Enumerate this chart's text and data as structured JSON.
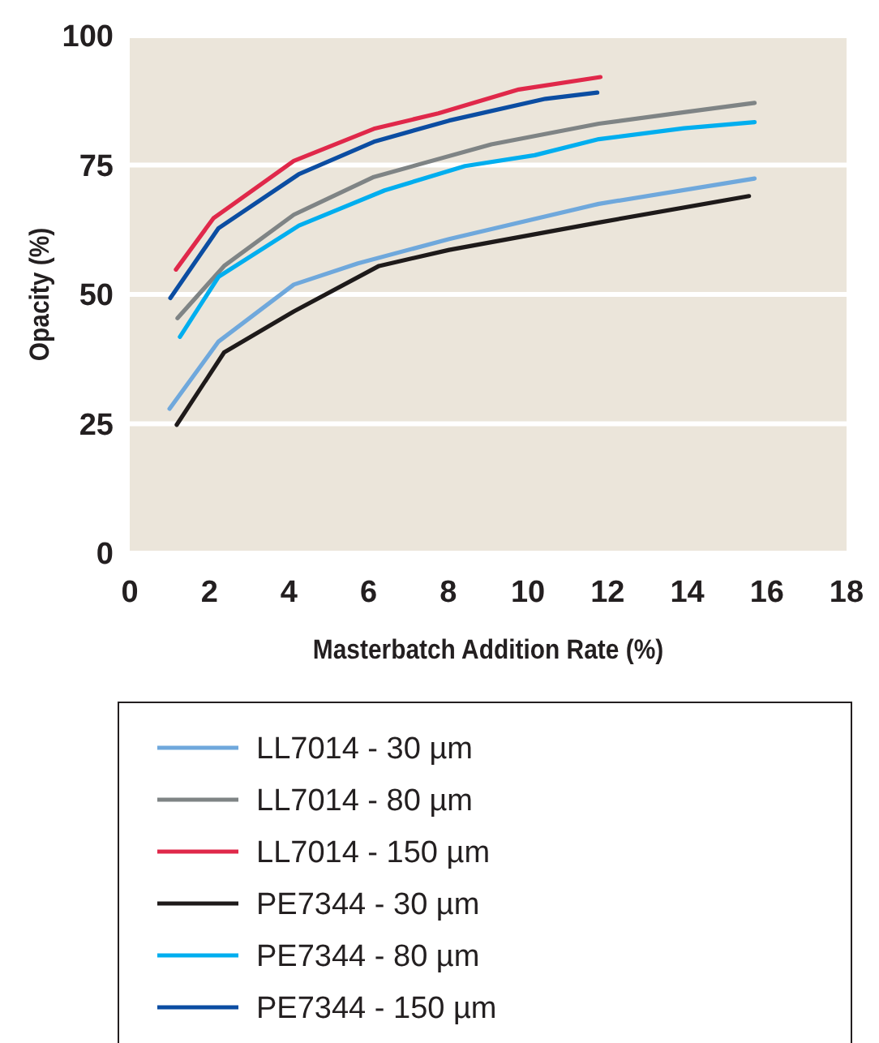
{
  "chart_data": {
    "type": "line",
    "xlabel": "Masterbatch Addition Rate (%)",
    "ylabel": "Opacity (%)",
    "xlim": [
      0,
      18
    ],
    "xticks": [
      0,
      2,
      4,
      6,
      8,
      10,
      12,
      14,
      16,
      18
    ],
    "ylim": [
      0,
      100
    ],
    "yticks": [
      0,
      25,
      50,
      75,
      100
    ],
    "grid": "y",
    "legend": "bottom",
    "series": [
      {
        "name": "LL7014 - 30 µm",
        "color": "#6fa8dc",
        "x": [
          1.0,
          2.23,
          4.12,
          5.73,
          8.02,
          11.78,
          15.69
        ],
        "values": [
          27.9,
          40.9,
          51.9,
          56,
          60.7,
          67.5,
          72.4
        ]
      },
      {
        "name": "LL7014 - 80 µm",
        "color": "#7f8485",
        "x": [
          1.2,
          2.37,
          4.12,
          6.13,
          9.08,
          11.78,
          13.92,
          15.69
        ],
        "values": [
          45.4,
          55.5,
          65.4,
          72.7,
          79,
          83,
          85.2,
          87
        ]
      },
      {
        "name": "LL7014 - 150 µm",
        "color": "#e0284a",
        "x": [
          1.16,
          2.1,
          4.12,
          6.13,
          7.75,
          9.77,
          11.82
        ],
        "values": [
          54.8,
          64.7,
          75.8,
          82,
          85,
          89.6,
          92
        ]
      },
      {
        "name": "PE7344 - 30 µm",
        "color": "#1e1a1a",
        "x": [
          1.18,
          2.37,
          4.12,
          6.26,
          8.02,
          11.78,
          15.55
        ],
        "values": [
          24.8,
          38.8,
          46.7,
          55.5,
          58.6,
          63.9,
          69
        ]
      },
      {
        "name": "PE7344 - 80 µm",
        "color": "#00aeef",
        "x": [
          1.26,
          2.23,
          4.25,
          6.4,
          8.42,
          10.17,
          11.78,
          13.92,
          15.69
        ],
        "values": [
          41.8,
          53.4,
          63.3,
          70.1,
          74.8,
          76.9,
          80,
          82.1,
          83.3
        ]
      },
      {
        "name": "PE7344 - 150 µm",
        "color": "#0b4da2",
        "x": [
          1.02,
          2.23,
          4.24,
          6.13,
          8.02,
          10.44,
          11.74
        ],
        "values": [
          49.3,
          62.8,
          73.2,
          79.5,
          83.6,
          87.8,
          89
        ]
      }
    ]
  }
}
